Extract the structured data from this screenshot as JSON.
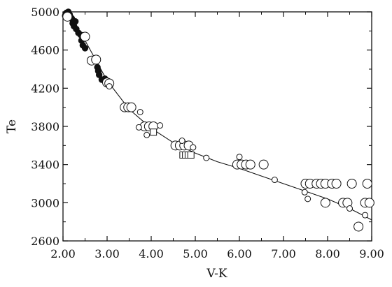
{
  "chart_data": {
    "type": "scatter",
    "xlabel": "V-K",
    "ylabel": "Te",
    "xlim": [
      2.0,
      9.0
    ],
    "ylim": [
      2600,
      5000
    ],
    "x_ticks": [
      2.0,
      3.0,
      4.0,
      5.0,
      6.0,
      7.0,
      8.0,
      9.0
    ],
    "x_tick_labels": [
      "2.00",
      "3.00",
      "4.00",
      "5.00",
      "6.00",
      "7.00",
      "8.00",
      "9.00"
    ],
    "y_ticks": [
      2600,
      3000,
      3400,
      3800,
      4200,
      4600,
      5000
    ],
    "y_tick_labels": [
      "2600",
      "3000",
      "3400",
      "3800",
      "4200",
      "4600",
      "5000"
    ],
    "grid": false,
    "series": [
      {
        "marker": "filled-circle",
        "points": [
          [
            2.05,
            4960
          ],
          [
            2.08,
            4990
          ],
          [
            2.1,
            4950
          ],
          [
            2.12,
            5000
          ],
          [
            2.15,
            4970
          ],
          [
            2.18,
            4940
          ],
          [
            2.2,
            4930
          ],
          [
            2.22,
            4880
          ],
          [
            2.25,
            4850
          ],
          [
            2.28,
            4900
          ],
          [
            2.3,
            4820
          ],
          [
            2.35,
            4780
          ],
          [
            2.4,
            4760
          ],
          [
            2.42,
            4700
          ],
          [
            2.45,
            4650
          ],
          [
            2.5,
            4620
          ],
          [
            2.62,
            4500
          ],
          [
            2.7,
            4490
          ],
          [
            2.78,
            4420
          ],
          [
            2.8,
            4380
          ],
          [
            2.82,
            4340
          ],
          [
            2.88,
            4290
          ],
          [
            2.95,
            4300
          ],
          [
            3.0,
            4260
          ]
        ]
      },
      {
        "marker": "open-circle-large",
        "points": [
          [
            2.1,
            4950
          ],
          [
            2.5,
            4740
          ],
          [
            2.65,
            4490
          ],
          [
            2.75,
            4500
          ],
          [
            3.0,
            4260
          ],
          [
            3.05,
            4250
          ],
          [
            3.4,
            4000
          ],
          [
            3.48,
            4000
          ],
          [
            3.55,
            4000
          ],
          [
            3.85,
            3800
          ],
          [
            3.95,
            3800
          ],
          [
            4.05,
            3800
          ],
          [
            4.55,
            3600
          ],
          [
            4.65,
            3600
          ],
          [
            4.75,
            3600
          ],
          [
            4.85,
            3600
          ],
          [
            5.95,
            3400
          ],
          [
            6.05,
            3400
          ],
          [
            6.15,
            3400
          ],
          [
            6.25,
            3400
          ],
          [
            6.55,
            3400
          ],
          [
            7.5,
            3200
          ],
          [
            7.6,
            3200
          ],
          [
            7.75,
            3200
          ],
          [
            7.85,
            3200
          ],
          [
            7.95,
            3200
          ],
          [
            8.1,
            3200
          ],
          [
            8.2,
            3200
          ],
          [
            8.55,
            3200
          ],
          [
            8.9,
            3200
          ],
          [
            7.95,
            3000
          ],
          [
            8.35,
            3000
          ],
          [
            8.45,
            3000
          ],
          [
            8.85,
            3000
          ],
          [
            8.95,
            3000
          ],
          [
            8.7,
            2750
          ]
        ]
      },
      {
        "marker": "open-circle-small",
        "points": [
          [
            3.05,
            4220
          ],
          [
            3.75,
            3950
          ],
          [
            3.72,
            3790
          ],
          [
            3.9,
            3710
          ],
          [
            4.2,
            3810
          ],
          [
            4.95,
            3580
          ],
          [
            4.7,
            3650
          ],
          [
            5.25,
            3470
          ],
          [
            6.0,
            3480
          ],
          [
            6.8,
            3240
          ],
          [
            7.48,
            3110
          ],
          [
            7.55,
            3040
          ],
          [
            8.5,
            2940
          ],
          [
            8.85,
            2870
          ]
        ]
      },
      {
        "marker": "open-square",
        "points": [
          [
            4.05,
            3740
          ],
          [
            4.72,
            3500
          ],
          [
            4.78,
            3500
          ],
          [
            4.84,
            3500
          ],
          [
            4.9,
            3500
          ]
        ]
      }
    ],
    "fit_curve": {
      "x": [
        2.0,
        2.2,
        2.5,
        3.0,
        3.5,
        4.0,
        4.5,
        5.0,
        5.5,
        6.0,
        6.5,
        7.0,
        7.5,
        8.0,
        8.5,
        9.0
      ],
      "y": [
        5000,
        4880,
        4700,
        4280,
        3980,
        3780,
        3630,
        3520,
        3430,
        3360,
        3280,
        3200,
        3120,
        3040,
        2940,
        2820
      ]
    }
  }
}
